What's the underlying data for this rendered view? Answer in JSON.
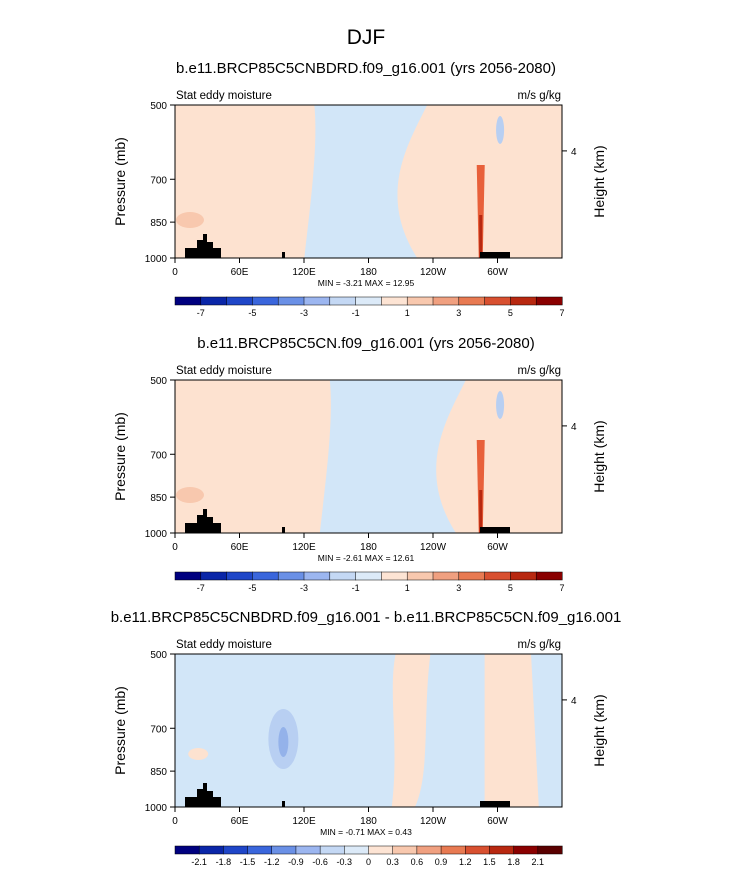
{
  "figure": {
    "title": "DJF"
  },
  "colors": {
    "land": "#000000",
    "frame": "#000000"
  },
  "chart_data": [
    {
      "type": "heatmap",
      "title": "b.e11.BRCP85C5CNBDRD.f09_g16.001 (yrs 2056-2080)",
      "left_label": "Stat eddy moisture",
      "right_label": "m/s g/kg",
      "ylabel": "Pressure (mb)",
      "ylabel_right": "Height (km)",
      "yticks": [
        "500",
        "700",
        "850",
        "1000"
      ],
      "yticks_right": [
        "4"
      ],
      "xticks": [
        "0",
        "60E",
        "120E",
        "180",
        "120W",
        "60W"
      ],
      "stats": "MIN =  -3.21  MAX =  12.95",
      "colorbar": {
        "labels": [
          "-7",
          "-5",
          "-3",
          "-1",
          "1",
          "3",
          "5",
          "7"
        ],
        "colors": [
          "#00007f",
          "#0a26a8",
          "#1f46c8",
          "#3a66dc",
          "#6a90e6",
          "#9cb6f0",
          "#c4d8f4",
          "#dceaf8",
          "#fde4d4",
          "#f8c8ae",
          "#f0a080",
          "#e87a52",
          "#d85030",
          "#b82810",
          "#8a0000"
        ]
      },
      "field_description": "mostly weak positive values (light orange) over 0-120E and 60W-0, weak negative (light blue) 120E-90W; strong positive spike near 75W at surface",
      "dominant_range": [
        -1,
        1
      ]
    },
    {
      "type": "heatmap",
      "title": "b.e11.BRCP85C5CN.f09_g16.001 (yrs 2056-2080)",
      "left_label": "Stat eddy moisture",
      "right_label": "m/s g/kg",
      "ylabel": "Pressure (mb)",
      "ylabel_right": "Height (km)",
      "yticks": [
        "500",
        "700",
        "850",
        "1000"
      ],
      "yticks_right": [
        "4"
      ],
      "xticks": [
        "0",
        "60E",
        "120E",
        "180",
        "120W",
        "60W"
      ],
      "stats": "MIN =  -2.61  MAX =  12.61",
      "colorbar": {
        "labels": [
          "-7",
          "-5",
          "-3",
          "-1",
          "1",
          "3",
          "5",
          "7"
        ],
        "colors": [
          "#00007f",
          "#0a26a8",
          "#1f46c8",
          "#3a66dc",
          "#6a90e6",
          "#9cb6f0",
          "#c4d8f4",
          "#dceaf8",
          "#fde4d4",
          "#f8c8ae",
          "#f0a080",
          "#e87a52",
          "#d85030",
          "#b82810",
          "#8a0000"
        ]
      },
      "dominant_range": [
        -1,
        1
      ]
    },
    {
      "type": "heatmap",
      "title": "b.e11.BRCP85C5CNBDRD.f09_g16.001 - b.e11.BRCP85C5CN.f09_g16.001",
      "left_label": "Stat eddy moisture",
      "right_label": "m/s g/kg",
      "ylabel": "Pressure (mb)",
      "ylabel_right": "Height (km)",
      "yticks": [
        "500",
        "700",
        "850",
        "1000"
      ],
      "yticks_right": [
        "4"
      ],
      "xticks": [
        "0",
        "60E",
        "120E",
        "180",
        "120W",
        "60W"
      ],
      "stats": "MIN =  -0.71  MAX =  0.43",
      "colorbar": {
        "labels": [
          "-2.1",
          "-1.8",
          "-1.5",
          "-1.2",
          "-0.9",
          "-0.6",
          "-0.3",
          "0",
          "0.3",
          "0.6",
          "0.9",
          "1.2",
          "1.5",
          "1.8",
          "2.1"
        ],
        "colors": [
          "#00007f",
          "#0a26a8",
          "#1f46c8",
          "#3a66dc",
          "#6a90e6",
          "#9cb6f0",
          "#c4d8f4",
          "#dceaf8",
          "#fde4d4",
          "#f8c8ae",
          "#f0a080",
          "#e87a52",
          "#d85030",
          "#b82810",
          "#8a0000",
          "#5a0000"
        ]
      },
      "dominant_range": [
        -0.3,
        0.3
      ]
    }
  ]
}
